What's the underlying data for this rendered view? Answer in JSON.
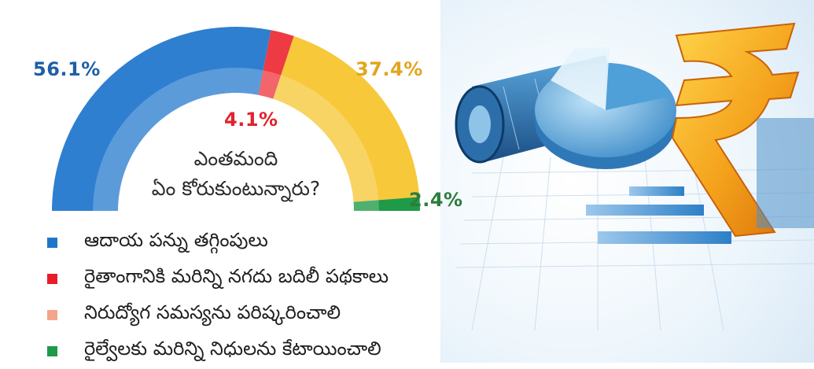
{
  "chart_data": {
    "type": "donut",
    "title": "ఎంతమంది ఏం కోరుకుంటున్నారు?",
    "title_lines": [
      "ఎంతమంది",
      "ఏం కోరుకుంటున్నారు?"
    ],
    "series": [
      {
        "name": "ఆదాయ పన్ను తగ్గింపులు",
        "value": 56.1,
        "label": "56.1%",
        "color": "#2f7fd0"
      },
      {
        "name": "రైతాంగానికి మరిన్ని నగదు బదిలీ పథకాలు",
        "value": 4.1,
        "label": "4.1%",
        "color": "#ee3a42"
      },
      {
        "name": "నిరుద్యోగ సమస్యను పరిష్కరించాలి",
        "value": 37.4,
        "label": "37.4%",
        "color": "#f7c83a"
      },
      {
        "name": "రైల్వేలకు మరిన్ని నిధులను కేటాయించాలి",
        "value": 2.4,
        "label": "2.4%",
        "color": "#1f9a48"
      }
    ],
    "legend_colors": [
      "#1f76c9",
      "#e81d2a",
      "#f4a48a",
      "#1f9a48"
    ],
    "label_colors": [
      "#1f5fa8",
      "#e0242e",
      "#e3a51c",
      "#2c7d3c"
    ]
  }
}
